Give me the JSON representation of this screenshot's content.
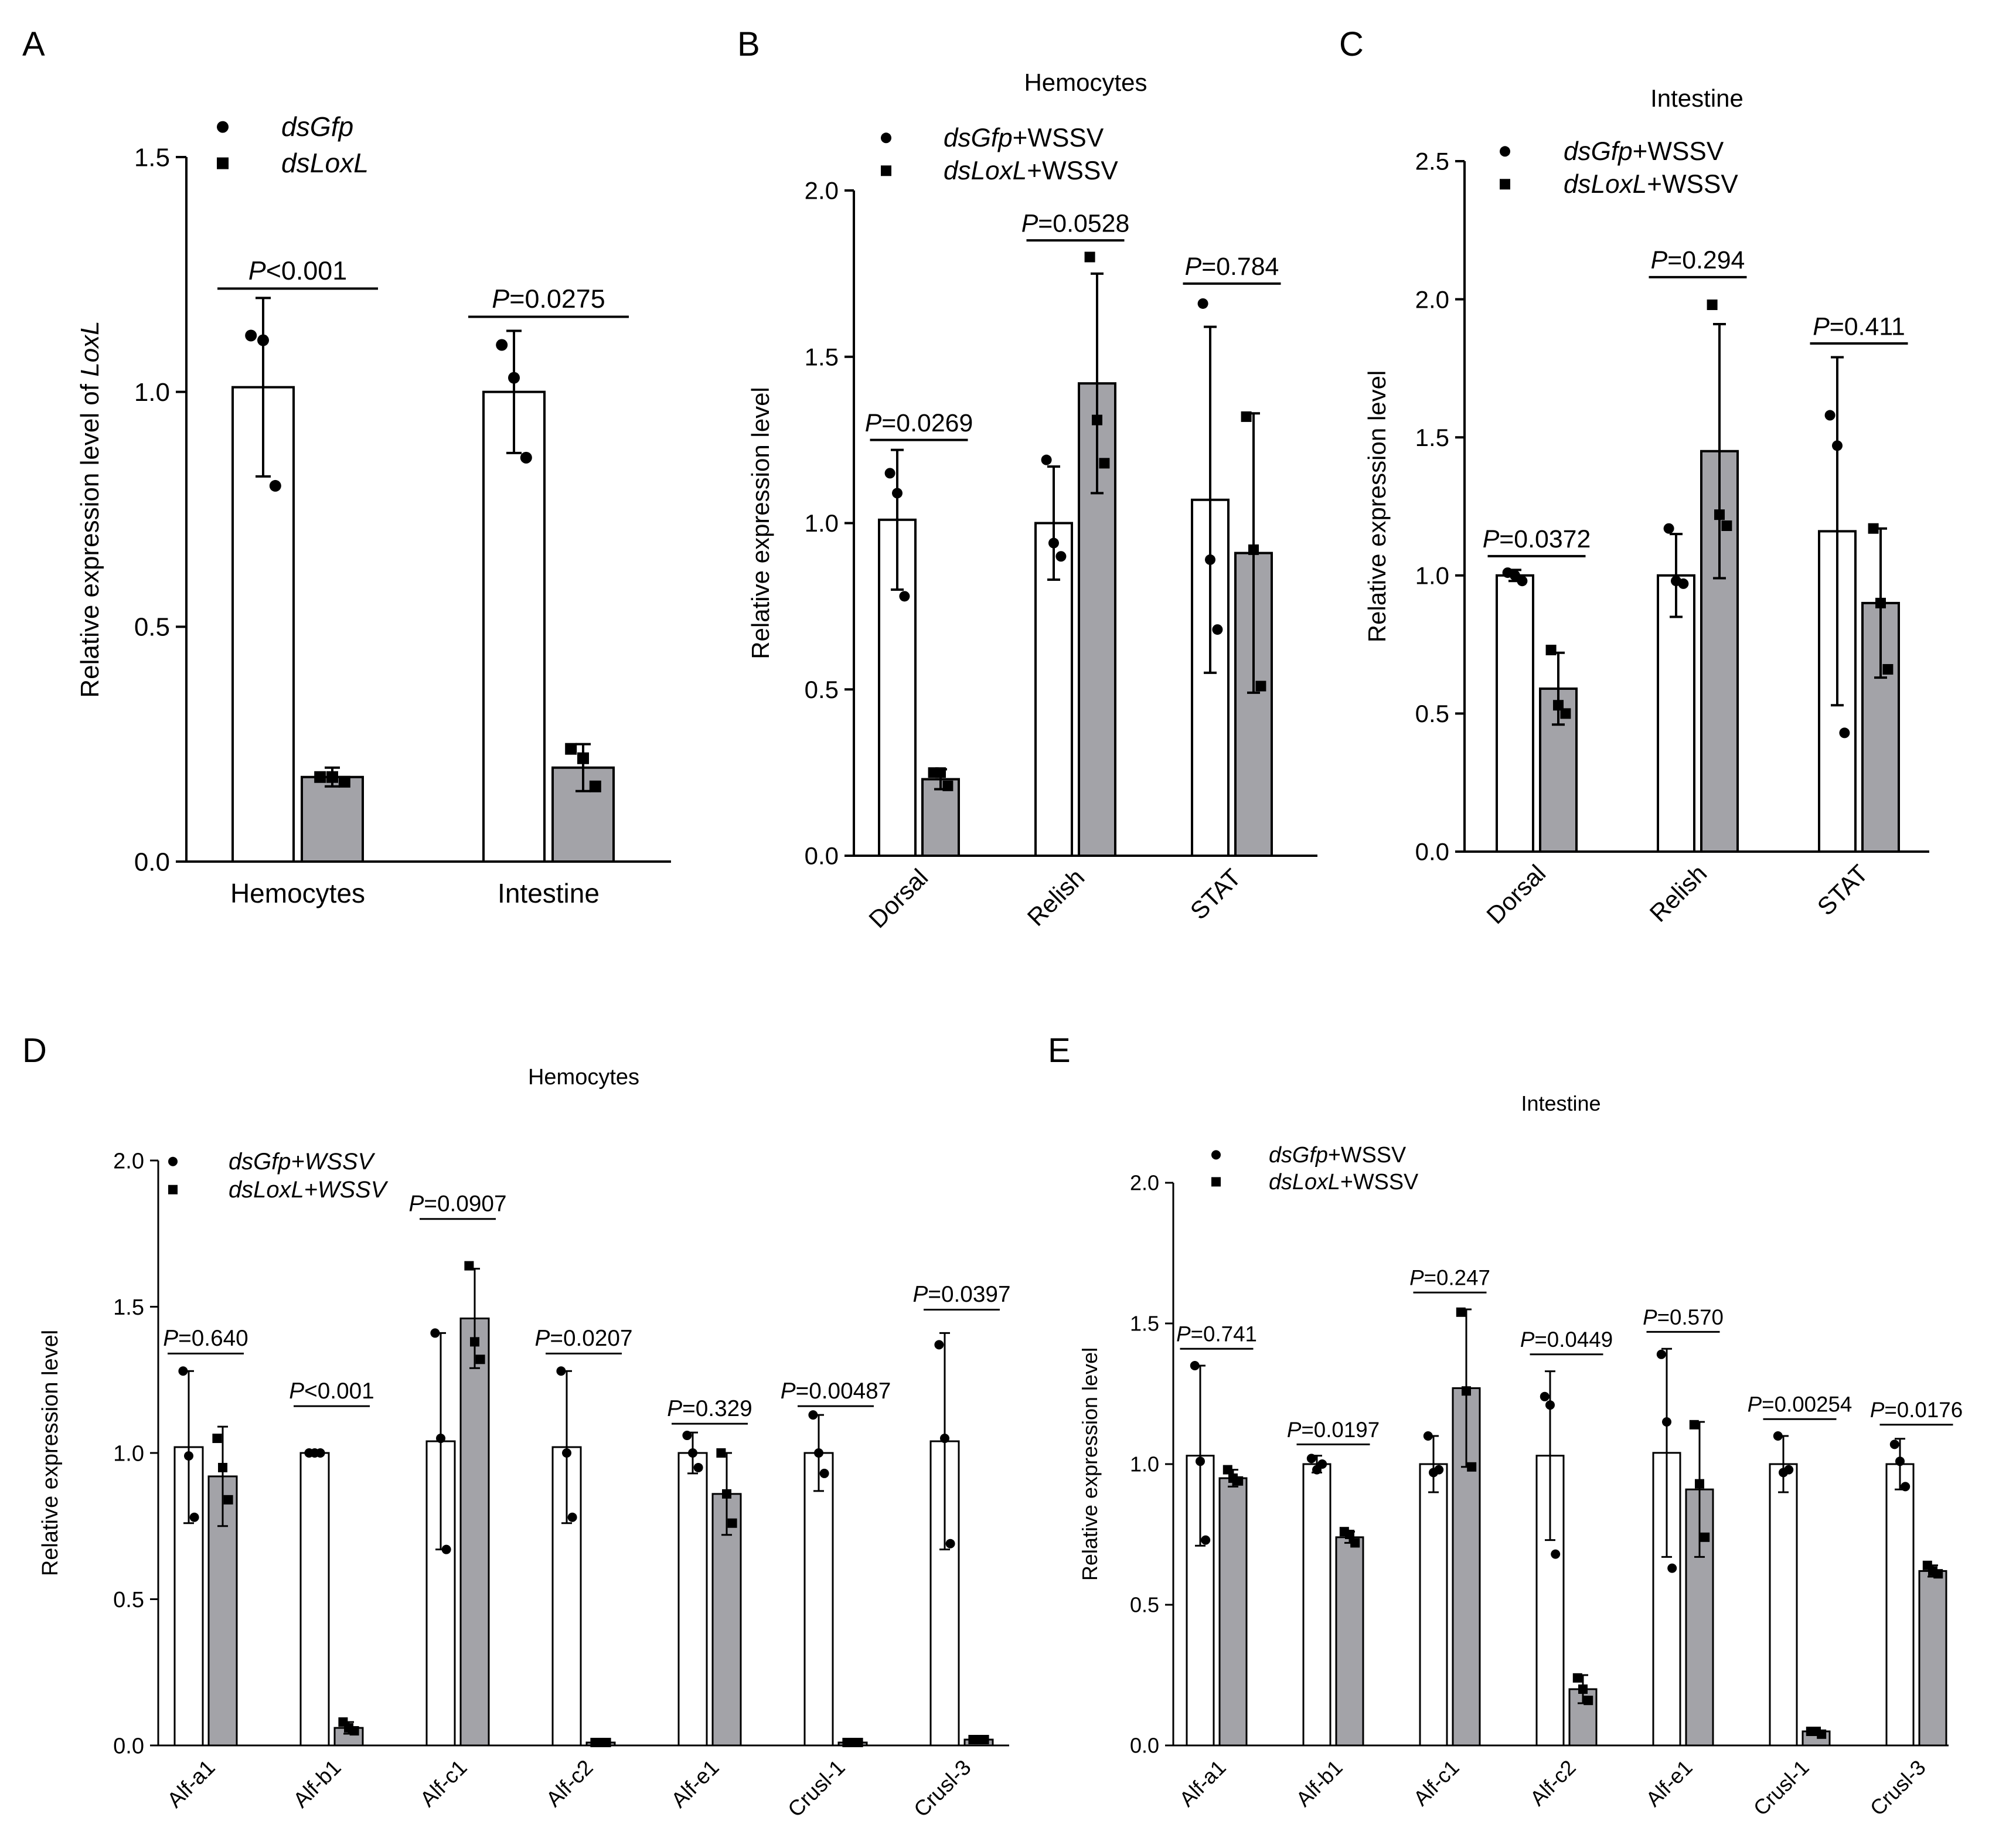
{
  "figure": {
    "colors": {
      "ink": "#000000",
      "open_bar": "#ffffff",
      "gray_bar": "#a3a3a8"
    }
  },
  "chart_data": [
    {
      "panel": "A",
      "type": "bar",
      "title": "",
      "ylabel": "Relative expression level of LoxL",
      "ylabel_plain": "Relative expression level of ",
      "ylabel_italic": "LoxL",
      "xlabel": "",
      "ylim": [
        0,
        1.5
      ],
      "yticks": [
        0.0,
        0.5,
        1.0,
        1.5
      ],
      "ytick_labels": [
        "0.0",
        "0.5",
        "1.0",
        "1.5"
      ],
      "categories": [
        "Hemocytes",
        "Intestine"
      ],
      "rotate_labels": false,
      "legend_position": "top-left",
      "legend_italic_whole": true,
      "series": [
        {
          "name": "dsGfp",
          "name_italic": "dsGfp",
          "name_suffix": "",
          "marker": "circle",
          "fill": "open",
          "values": [
            1.01,
            1.0
          ],
          "errors": [
            0.19,
            0.13
          ],
          "points": [
            [
              1.12,
              1.11,
              0.8
            ],
            [
              1.1,
              1.03,
              0.86
            ]
          ]
        },
        {
          "name": "dsLoxL",
          "name_italic": "dsLoxL",
          "name_suffix": "",
          "marker": "square",
          "fill": "gray",
          "values": [
            0.18,
            0.2
          ],
          "errors": [
            0.02,
            0.05
          ],
          "points": [
            [
              0.18,
              0.18,
              0.17
            ],
            [
              0.24,
              0.22,
              0.16
            ]
          ]
        }
      ],
      "pvalues": [
        {
          "label": "P<0.001",
          "italic": "P",
          "rest": "<0.001",
          "y": 1.22
        },
        {
          "label": "P=0.0275",
          "italic": "P",
          "rest": "=0.0275",
          "y": 1.16
        }
      ]
    },
    {
      "panel": "B",
      "type": "bar",
      "title": "Hemocytes",
      "ylabel": "Relative expression level",
      "ylabel_plain": "Relative expression level",
      "ylabel_italic": "",
      "xlabel": "",
      "ylim": [
        0,
        2.0
      ],
      "yticks": [
        0.0,
        0.5,
        1.0,
        1.5,
        2.0
      ],
      "ytick_labels": [
        "0.0",
        "0.5",
        "1.0",
        "1.5",
        "2.0"
      ],
      "categories": [
        "Dorsal",
        "Relish",
        "STAT"
      ],
      "rotate_labels": true,
      "legend_position": "top-left",
      "legend_italic_whole": false,
      "series": [
        {
          "name": "dsGfp+WSSV",
          "name_italic": "dsGfp",
          "name_suffix": "+WSSV",
          "marker": "circle",
          "fill": "open",
          "values": [
            1.01,
            1.0,
            1.07
          ],
          "errors": [
            0.21,
            0.17,
            0.52
          ],
          "points": [
            [
              1.15,
              1.09,
              0.78
            ],
            [
              1.19,
              0.94,
              0.9
            ],
            [
              1.66,
              0.89,
              0.68
            ]
          ]
        },
        {
          "name": "dsLoxL+WSSV",
          "name_italic": "dsLoxL",
          "name_suffix": "+WSSV",
          "marker": "square",
          "fill": "gray",
          "values": [
            0.23,
            1.42,
            0.91
          ],
          "errors": [
            0.03,
            0.33,
            0.42
          ],
          "points": [
            [
              0.25,
              0.25,
              0.21
            ],
            [
              1.8,
              1.31,
              1.18
            ],
            [
              1.32,
              0.92,
              0.51
            ]
          ]
        }
      ],
      "pvalues": [
        {
          "label": "P=0.0269",
          "italic": "P",
          "rest": "=0.0269",
          "y": 1.25
        },
        {
          "label": "P=0.0528",
          "italic": "P",
          "rest": "=0.0528",
          "y": 1.85
        },
        {
          "label": "P=0.784",
          "italic": "P",
          "rest": "=0.784",
          "y": 1.72
        }
      ]
    },
    {
      "panel": "C",
      "type": "bar",
      "title": "Intestine",
      "ylabel": "Relative expression level",
      "ylabel_plain": "Relative expression level",
      "ylabel_italic": "",
      "xlabel": "",
      "ylim": [
        0,
        2.5
      ],
      "yticks": [
        0.0,
        0.5,
        1.0,
        1.5,
        2.0,
        2.5
      ],
      "ytick_labels": [
        "0.0",
        "0.5",
        "1.0",
        "1.5",
        "2.0",
        "2.5"
      ],
      "categories": [
        "Dorsal",
        "Relish",
        "STAT"
      ],
      "rotate_labels": true,
      "legend_position": "top-left",
      "legend_italic_whole": false,
      "series": [
        {
          "name": "dsGfp+WSSV",
          "name_italic": "dsGfp",
          "name_suffix": "+WSSV",
          "marker": "circle",
          "fill": "open",
          "values": [
            1.0,
            1.0,
            1.16
          ],
          "errors": [
            0.02,
            0.15,
            0.63
          ],
          "points": [
            [
              1.01,
              1.0,
              0.98
            ],
            [
              1.17,
              0.98,
              0.97
            ],
            [
              1.58,
              1.47,
              0.43
            ]
          ]
        },
        {
          "name": "dsLoxL+WSSV",
          "name_italic": "dsLoxL",
          "name_suffix": "+WSSV",
          "marker": "square",
          "fill": "gray",
          "values": [
            0.59,
            1.45,
            0.9
          ],
          "errors": [
            0.13,
            0.46,
            0.27
          ],
          "points": [
            [
              0.73,
              0.53,
              0.5
            ],
            [
              1.98,
              1.22,
              1.18
            ],
            [
              1.17,
              0.9,
              0.66
            ]
          ]
        }
      ],
      "pvalues": [
        {
          "label": "P=0.0372",
          "italic": "P",
          "rest": "=0.0372",
          "y": 1.07
        },
        {
          "label": "P=0.294",
          "italic": "P",
          "rest": "=0.294",
          "y": 2.08
        },
        {
          "label": "P=0.411",
          "italic": "P",
          "rest": "=0.411",
          "y": 1.84
        }
      ]
    },
    {
      "panel": "D",
      "type": "bar",
      "title": "Hemocytes",
      "ylabel": "Relative expression level",
      "ylabel_plain": "Relative expression level",
      "ylabel_italic": "",
      "xlabel": "",
      "ylim": [
        0,
        2.0
      ],
      "yticks": [
        0.0,
        0.5,
        1.0,
        1.5,
        2.0
      ],
      "ytick_labels": [
        "0.0",
        "0.5",
        "1.0",
        "1.5",
        "2.0"
      ],
      "categories": [
        "Alf-a1",
        "Alf-b1",
        "Alf-c1",
        "Alf-c2",
        "Alf-e1",
        "Crusl-1",
        "Crusl-3"
      ],
      "rotate_labels": true,
      "legend_position": "top-left",
      "legend_italic_whole": true,
      "series": [
        {
          "name": "dsGfp+WSSV",
          "name_italic": "dsGfp+WSSV",
          "name_suffix": "",
          "marker": "circle",
          "fill": "open",
          "values": [
            1.02,
            1.0,
            1.04,
            1.02,
            1.0,
            1.0,
            1.04
          ],
          "errors": [
            0.26,
            0.01,
            0.37,
            0.26,
            0.07,
            0.13,
            0.37
          ],
          "points": [
            [
              1.28,
              0.99,
              0.78
            ],
            [
              1.0,
              1.0,
              1.0
            ],
            [
              1.41,
              1.05,
              0.67
            ],
            [
              1.28,
              1.0,
              0.78
            ],
            [
              1.06,
              1.0,
              0.95
            ],
            [
              1.13,
              1.0,
              0.93
            ],
            [
              1.37,
              1.05,
              0.69
            ]
          ]
        },
        {
          "name": "dsLoxL+WSSV",
          "name_italic": "dsLoxL+WSSV",
          "name_suffix": "",
          "marker": "square",
          "fill": "gray",
          "values": [
            0.92,
            0.06,
            1.46,
            0.01,
            0.86,
            0.01,
            0.02
          ],
          "errors": [
            0.17,
            0.02,
            0.17,
            0.0,
            0.14,
            0.0,
            0.0
          ],
          "points": [
            [
              1.05,
              0.95,
              0.84
            ],
            [
              0.08,
              0.06,
              0.05
            ],
            [
              1.64,
              1.38,
              1.32
            ],
            [
              0.01,
              0.01,
              0.01
            ],
            [
              1.0,
              0.86,
              0.76
            ],
            [
              0.01,
              0.01,
              0.01
            ],
            [
              0.02,
              0.02,
              0.02
            ]
          ]
        }
      ],
      "pvalues": [
        {
          "label": "P=0.640",
          "italic": "P",
          "rest": "=0.640",
          "y": 1.34
        },
        {
          "label": "P<0.001",
          "italic": "P",
          "rest": "<0.001",
          "y": 1.16
        },
        {
          "label": "P=0.0907",
          "italic": "P",
          "rest": "=0.0907",
          "y": 1.8
        },
        {
          "label": "P=0.0207",
          "italic": "P",
          "rest": "=0.0207",
          "y": 1.34
        },
        {
          "label": "P=0.329",
          "italic": "P",
          "rest": "=0.329",
          "y": 1.1
        },
        {
          "label": "P=0.00487",
          "italic": "P",
          "rest": "=0.00487",
          "y": 1.16
        },
        {
          "label": "P=0.0397",
          "italic": "P",
          "rest": "=0.0397",
          "y": 1.49
        }
      ]
    },
    {
      "panel": "E",
      "type": "bar",
      "title": "Intestine",
      "ylabel": "Relative expression level",
      "ylabel_plain": "Relative expression level",
      "ylabel_italic": "",
      "xlabel": "",
      "ylim": [
        0,
        2.0
      ],
      "yticks": [
        0.0,
        0.5,
        1.0,
        1.5,
        2.0
      ],
      "ytick_labels": [
        "0.0",
        "0.5",
        "1.0",
        "1.5",
        "2.0"
      ],
      "categories": [
        "Alf-a1",
        "Alf-b1",
        "Alf-c1",
        "Alf-c2",
        "Alf-e1",
        "Crusl-1",
        "Crusl-3"
      ],
      "rotate_labels": true,
      "legend_position": "top-left",
      "legend_italic_whole": false,
      "series": [
        {
          "name": "dsGfp+WSSV",
          "name_italic": "dsGfp",
          "name_suffix": "+WSSV",
          "marker": "circle",
          "fill": "open",
          "values": [
            1.03,
            1.0,
            1.0,
            1.03,
            1.04,
            1.0,
            1.0
          ],
          "errors": [
            0.32,
            0.03,
            0.1,
            0.3,
            0.37,
            0.1,
            0.09
          ],
          "points": [
            [
              1.35,
              1.01,
              0.73
            ],
            [
              1.02,
              0.98,
              1.0
            ],
            [
              1.1,
              0.97,
              0.98
            ],
            [
              1.24,
              1.21,
              0.68
            ],
            [
              1.39,
              1.15,
              0.63
            ],
            [
              1.1,
              0.97,
              0.98
            ],
            [
              1.07,
              1.01,
              0.92
            ]
          ]
        },
        {
          "name": "dsLoxL+WSSV",
          "name_italic": "dsLoxL",
          "name_suffix": "+WSSV",
          "marker": "square",
          "fill": "gray",
          "values": [
            0.95,
            0.74,
            1.27,
            0.2,
            0.91,
            0.05,
            0.62
          ],
          "errors": [
            0.03,
            0.02,
            0.28,
            0.05,
            0.24,
            0.0,
            0.02
          ],
          "points": [
            [
              0.98,
              0.95,
              0.94
            ],
            [
              0.76,
              0.75,
              0.72
            ],
            [
              1.54,
              1.26,
              0.99
            ],
            [
              0.24,
              0.2,
              0.16
            ],
            [
              1.14,
              0.93,
              0.74
            ],
            [
              0.05,
              0.05,
              0.04
            ],
            [
              0.64,
              0.62,
              0.61
            ]
          ]
        }
      ],
      "pvalues": [
        {
          "label": "P=0.741",
          "italic": "P",
          "rest": "=0.741",
          "y": 1.41
        },
        {
          "label": "P=0.0197",
          "italic": "P",
          "rest": "=0.0197",
          "y": 1.07
        },
        {
          "label": "P=0.247",
          "italic": "P",
          "rest": "=0.247",
          "y": 1.61
        },
        {
          "label": "P=0.0449",
          "italic": "P",
          "rest": "=0.0449",
          "y": 1.39
        },
        {
          "label": "P=0.570",
          "italic": "P",
          "rest": "=0.570",
          "y": 1.47
        },
        {
          "label": "P=0.00254",
          "italic": "P",
          "rest": "=0.00254",
          "y": 1.16
        },
        {
          "label": "P=0.0176",
          "italic": "P",
          "rest": "=0.0176",
          "y": 1.14
        }
      ]
    }
  ]
}
